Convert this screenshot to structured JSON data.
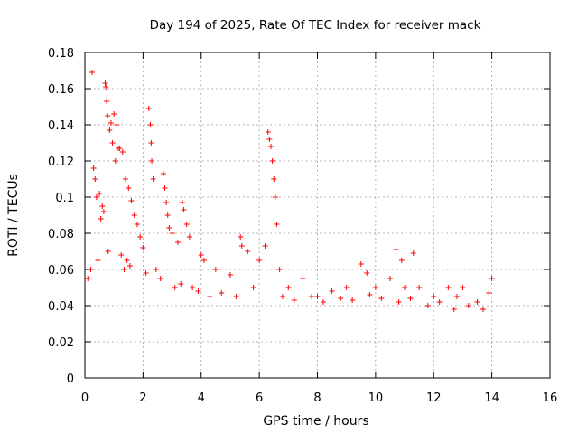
{
  "chart_data": {
    "type": "scatter",
    "title": "Day 194 of 2025, Rate Of TEC Index for receiver mack",
    "xlabel": "GPS time / hours",
    "ylabel": "ROTI / TECUs",
    "xlim": [
      0,
      16
    ],
    "ylim": [
      0,
      0.18
    ],
    "xticks": [
      0,
      2,
      4,
      6,
      8,
      10,
      12,
      14,
      16
    ],
    "xtick_labels": [
      "0",
      "2",
      "4",
      "6",
      "8",
      "10",
      "12",
      "14",
      "16"
    ],
    "yticks": [
      0,
      0.02,
      0.04,
      0.06,
      0.08,
      0.1,
      0.12,
      0.14,
      0.16,
      0.18
    ],
    "ytick_labels": [
      "0",
      "0.02",
      "0.04",
      "0.06",
      "0.08",
      "0.1",
      "0.12",
      "0.14",
      "0.16",
      "0.18"
    ],
    "grid": true,
    "marker": "+",
    "color": "#ff0000",
    "series": [
      {
        "name": "ROTI",
        "x": [
          0.25,
          0.7,
          0.72,
          0.75,
          0.78,
          0.85,
          0.9,
          0.95,
          1.0,
          1.05,
          1.1,
          1.15,
          1.2,
          0.3,
          0.35,
          0.4,
          0.5,
          0.55,
          0.6,
          0.65,
          1.3,
          1.4,
          1.5,
          1.6,
          1.7,
          1.8,
          1.9,
          2.0,
          2.2,
          2.25,
          2.28,
          2.3,
          2.35,
          2.7,
          2.75,
          2.8,
          2.85,
          2.9,
          3.0,
          3.2,
          3.35,
          3.4,
          3.5,
          3.6,
          4.0,
          4.1,
          4.5,
          5.0,
          5.35,
          5.4,
          5.6,
          6.0,
          6.2,
          6.3,
          6.35,
          6.4,
          6.45,
          6.5,
          6.55,
          6.6,
          6.7,
          7.0,
          7.5,
          8.0,
          8.5,
          9.0,
          9.5,
          9.7,
          10.0,
          10.5,
          10.7,
          10.9,
          11.0,
          11.3,
          11.5,
          12.0,
          12.5,
          12.8,
          13.0,
          13.5,
          13.9,
          14.0,
          0.1,
          0.2,
          0.45,
          0.8,
          1.25,
          1.35,
          1.45,
          1.55,
          2.1,
          2.45,
          2.6,
          3.1,
          3.3,
          3.7,
          3.9,
          4.3,
          4.7,
          5.2,
          5.8,
          6.8,
          7.2,
          7.8,
          8.2,
          8.8,
          9.2,
          9.8,
          10.2,
          10.8,
          11.2,
          11.8,
          12.2,
          12.7,
          13.2,
          13.7
        ],
        "y": [
          0.169,
          0.163,
          0.161,
          0.153,
          0.145,
          0.137,
          0.141,
          0.13,
          0.146,
          0.12,
          0.14,
          0.127,
          0.127,
          0.116,
          0.11,
          0.1,
          0.102,
          0.088,
          0.095,
          0.092,
          0.125,
          0.11,
          0.105,
          0.098,
          0.09,
          0.085,
          0.078,
          0.072,
          0.149,
          0.14,
          0.13,
          0.12,
          0.11,
          0.113,
          0.105,
          0.097,
          0.09,
          0.083,
          0.08,
          0.075,
          0.097,
          0.093,
          0.085,
          0.078,
          0.068,
          0.065,
          0.06,
          0.057,
          0.078,
          0.073,
          0.07,
          0.065,
          0.073,
          0.136,
          0.132,
          0.128,
          0.12,
          0.11,
          0.1,
          0.085,
          0.06,
          0.05,
          0.055,
          0.045,
          0.048,
          0.05,
          0.063,
          0.058,
          0.05,
          0.055,
          0.071,
          0.065,
          0.05,
          0.069,
          0.05,
          0.045,
          0.05,
          0.045,
          0.05,
          0.042,
          0.047,
          0.055,
          0.055,
          0.06,
          0.065,
          0.07,
          0.068,
          0.06,
          0.065,
          0.062,
          0.058,
          0.06,
          0.055,
          0.05,
          0.052,
          0.05,
          0.048,
          0.045,
          0.047,
          0.045,
          0.05,
          0.045,
          0.043,
          0.045,
          0.042,
          0.044,
          0.043,
          0.046,
          0.044,
          0.042,
          0.044,
          0.04,
          0.042,
          0.038,
          0.04,
          0.038
        ]
      }
    ]
  }
}
